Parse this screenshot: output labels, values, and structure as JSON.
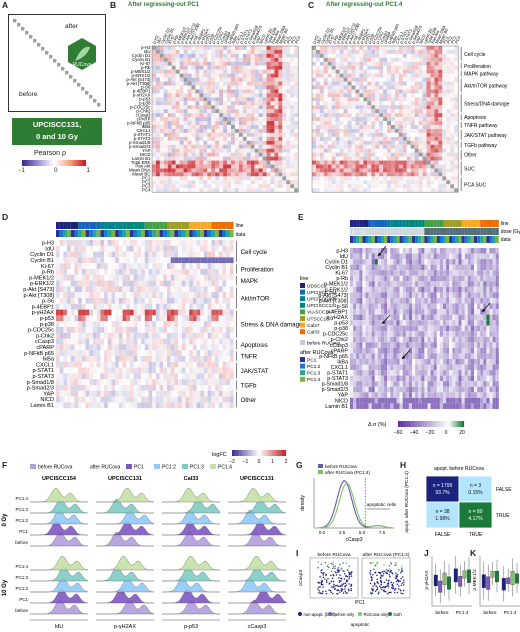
{
  "panels": {
    "A": {
      "letter": "A",
      "after": "after",
      "before": "before",
      "logo": "RUCova",
      "badge_line1": "UPCISCC131,",
      "badge_line2": "0 and 10 Gy",
      "legend_title": "Pearson ρ",
      "legend_ticks": [
        "−1",
        "0",
        "1"
      ]
    },
    "B": {
      "letter": "B",
      "title": "After regressing-out PC1"
    },
    "C": {
      "letter": "C",
      "title": "After regressing-out PC1:4"
    },
    "D": {
      "letter": "D",
      "col_labels": [
        "line",
        "data"
      ],
      "legend_title": "logFC",
      "legend_ticks": [
        "−2",
        "−1",
        "0",
        "1",
        "2"
      ]
    },
    "E": {
      "letter": "E",
      "col_labels": [
        "line",
        "dose [Gy]",
        "data"
      ],
      "dose_labels": [
        "0",
        "10"
      ],
      "legend_title": "Δ σ (%)",
      "legend_ticks": [
        "−60",
        "−40",
        "−20",
        "0",
        "20"
      ]
    },
    "F": {
      "letter": "F",
      "legend_before": "before RUCova",
      "legend_after": "after RUCova",
      "legend_items": [
        "PC1",
        "PC1:2",
        "PC1:3",
        "PC1:4"
      ],
      "columns": [
        "UPCISCC154",
        "UPCISCC131",
        "Cal33",
        "UPCISCC131"
      ],
      "xlabels": [
        "IdU",
        "p-γH2AX",
        "p-p53",
        "cCasp3"
      ],
      "row_labels": [
        "PC1:4",
        "PC1:3",
        "PC1:2",
        "PC1",
        "before"
      ],
      "groups": [
        "0 Gy",
        "10 Gy"
      ]
    },
    "G": {
      "letter": "G",
      "legend": [
        "before RUCova",
        "after RUCova (PC1:4)"
      ],
      "xlabel": "cCasp3",
      "ylabel": "density",
      "annotation": "apoptotic cells",
      "xticks": [
        "0.0",
        "2.5",
        "5.0",
        "7.5"
      ]
    },
    "H": {
      "letter": "H",
      "top_label": "apopt. before RUCova",
      "side_label": "apopt. after RUCova (PC1:4)",
      "row_labels": [
        "FALSE",
        "TRUE"
      ],
      "col_labels": [
        "FALSE",
        "TRUE"
      ],
      "cells": [
        {
          "n": "n = 1799",
          "pct": "93.7%"
        },
        {
          "n": "n = 3",
          "pct": "0.15%"
        },
        {
          "n": "n = 38",
          "pct": "1.98%"
        },
        {
          "n": "n = 80",
          "pct": "4.17%"
        }
      ]
    },
    "I": {
      "letter": "I",
      "titles": [
        "before RUCova",
        "after RUCova (PC1:4)"
      ],
      "xlabel": "PC1",
      "ylabel": "cCasp3",
      "legend": [
        "non-apopt. (both)",
        "before only",
        "RUCova only",
        "both"
      ],
      "legend_title": "apoptotic"
    },
    "J": {
      "letter": "J",
      "ylabel": "p-γH2AX",
      "groups": [
        "before",
        "PC1:4"
      ]
    },
    "K": {
      "letter": "K",
      "ylabel": "p-MEK1/2",
      "groups": [
        "before",
        "PC1:4"
      ]
    }
  },
  "markers_bc": [
    "p-H3",
    "IdU",
    "Cyclin D1",
    "Cyclin B1",
    "Ki-67",
    "p-Rb",
    "p-MEK1/2",
    "p-ERK1/2",
    "p-Akt [S473]",
    "p-Akt [T308]",
    "p-S6",
    "p-4EBP1",
    "p-γH2AX",
    "p-p53",
    "p-p38",
    "p-CDC25c",
    "p-Chk2",
    "cCasp3",
    "cPARP",
    "p-NFkB p65",
    "IkBa",
    "CXCL1",
    "p-STAT1",
    "p-STAT3",
    "p-Smad1/8",
    "p-Smad2/3",
    "YAP",
    "NICD",
    "Lamin B1",
    "Total ERK",
    "Pan Akt",
    "Mean DNA",
    "Mean BC",
    "PC1",
    "PC2",
    "PC3",
    "PC4"
  ],
  "markers_de": [
    "p-H3",
    "IdU",
    "Cyclin D1",
    "Cyclin B1",
    "Ki-67",
    "p-Rb",
    "p-MEK1/2",
    "p-ERK1/2",
    "p-Akt [S473]",
    "p-Akt [T308]",
    "p-S6",
    "p-4EBP1",
    "p-γH2AX",
    "p-p53",
    "p-p38",
    "p-CDC25c",
    "p-Chk2",
    "cCasp3",
    "cPARP",
    "p-NFkB p65",
    "IkBa",
    "CXCL1",
    "p-STAT1",
    "p-STAT3",
    "p-Smad1/8",
    "p-Smad2/3",
    "YAP",
    "NICD",
    "Lamin B1"
  ],
  "pathways_bc": [
    "Cell cycle",
    "Proliferation",
    "MAPK pathway",
    "Akt/mTOR pathway",
    "Stress/DNA damage",
    "Apoptosis",
    "TNFR pathway",
    "JAK/STAT pathway",
    "TGFb pathway",
    "Other",
    "SUC",
    "PCA SUC"
  ],
  "pathways_de": [
    "Cell cycle",
    "Proliferation",
    "MAPK",
    "Akt/mTOR",
    "Stress & DNA damage",
    "Apoptosis",
    "TNFR",
    "JAK/STAT",
    "TGFb",
    "Other"
  ],
  "line_legend": {
    "title": "line",
    "items": [
      {
        "name": "UDSCC2",
        "color": "#1a237e"
      },
      {
        "name": "UPCISCC154",
        "color": "#1565c0"
      },
      {
        "name": "UPCISCC099",
        "color": "#00838f"
      },
      {
        "name": "UPCISCC131",
        "color": "#00897b"
      },
      {
        "name": "VU-SCC147",
        "color": "#43a047"
      },
      {
        "name": "UTSCC16A",
        "color": "#9e9d24"
      },
      {
        "name": "Cal27",
        "color": "#f9a825"
      },
      {
        "name": "Cal33",
        "color": "#ef6c00"
      }
    ],
    "before_label": "before RUCova",
    "after_title": "after RUCova",
    "after_items": [
      {
        "name": "PC1",
        "color": "#283593"
      },
      {
        "name": "PC1:2",
        "color": "#1976d2"
      },
      {
        "name": "PC1:3",
        "color": "#26a69a"
      },
      {
        "name": "PC1:4",
        "color": "#7cb342"
      }
    ]
  },
  "colors": {
    "pos": "#d73027",
    "neg": "#4a3fa8",
    "green": "#1b7a3a",
    "before": "#6a5aa8",
    "after": "#7cc466"
  }
}
